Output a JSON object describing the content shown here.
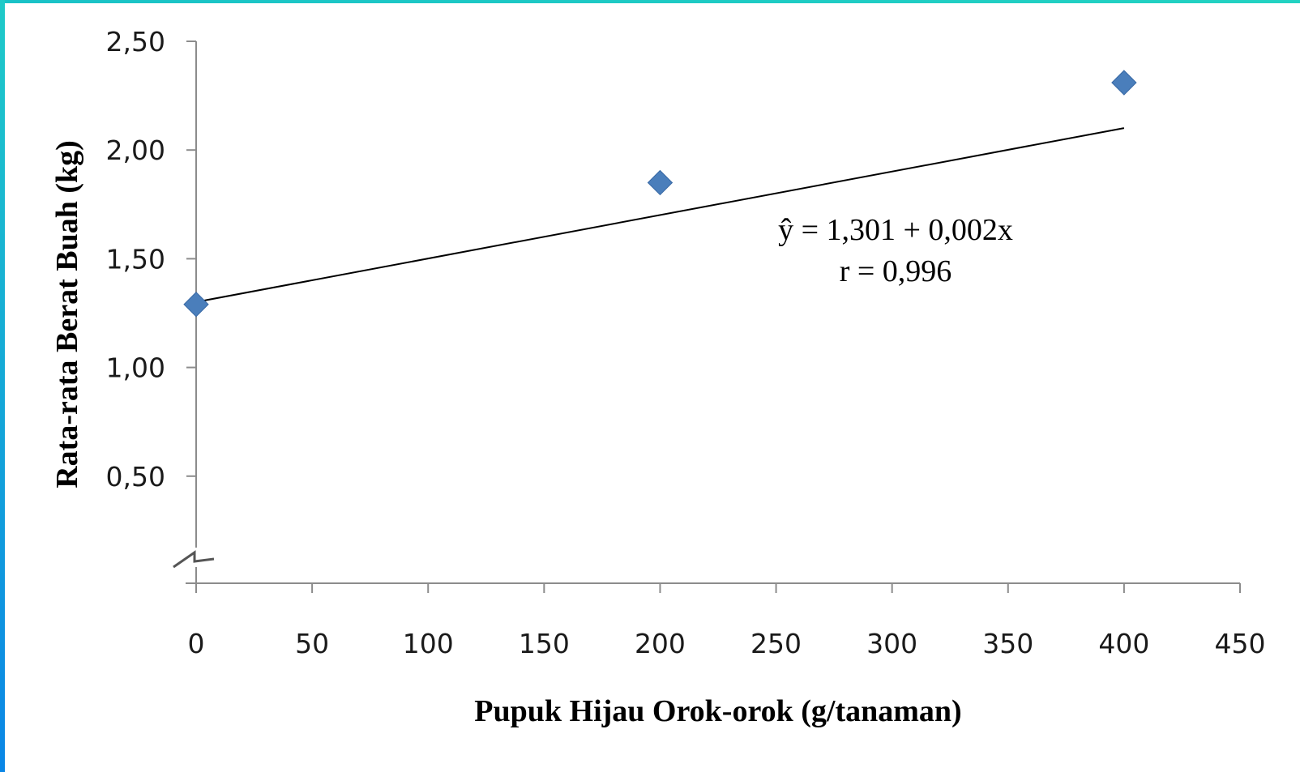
{
  "chart_data": {
    "type": "scatter",
    "title": "",
    "xlabel": "Pupuk Hijau Orok-orok (g/tanaman)",
    "ylabel": "Rata-rata Berat Buah (kg)",
    "xlim": [
      0,
      450
    ],
    "ylim": [
      0,
      2.5
    ],
    "x_ticks": [
      0,
      50,
      100,
      150,
      200,
      250,
      300,
      350,
      400,
      450
    ],
    "x_tick_labels": [
      "0",
      "50",
      "100",
      "150",
      "200",
      "250",
      "300",
      "350",
      "400",
      "450"
    ],
    "y_ticks": [
      0.5,
      1.0,
      1.5,
      2.0,
      2.5
    ],
    "y_tick_labels": [
      "0,50",
      "1,00",
      "1,50",
      "2,00",
      "2,50"
    ],
    "y_axis_break": true,
    "grid": false,
    "legend": "none",
    "series": [
      {
        "points": [
          {
            "x": 0,
            "y": 1.29
          },
          {
            "x": 200,
            "y": 1.85
          },
          {
            "x": 400,
            "y": 2.31
          }
        ],
        "marker": "diamond",
        "color": "#4a7ebb"
      }
    ],
    "trendline": {
      "intercept": 1.301,
      "slope": 0.002,
      "x_range": [
        0,
        400
      ],
      "color": "#000000"
    },
    "annotations": [
      "ŷ = 1,301 + 0,002x",
      "r = 0,996"
    ]
  }
}
